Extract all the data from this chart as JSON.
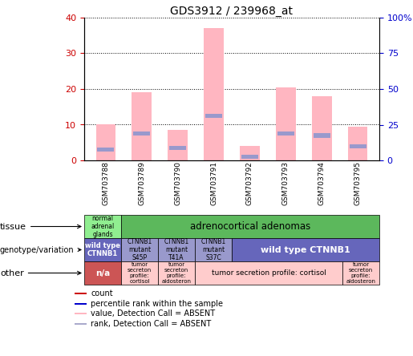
{
  "title": "GDS3912 / 239968_at",
  "samples": [
    "GSM703788",
    "GSM703789",
    "GSM703790",
    "GSM703791",
    "GSM703792",
    "GSM703793",
    "GSM703794",
    "GSM703795"
  ],
  "pink_bars": [
    10,
    19,
    8.5,
    37,
    4,
    20.5,
    18,
    9.5
  ],
  "blue_marks": [
    3,
    7.5,
    3.5,
    12.5,
    1,
    7.5,
    7,
    4
  ],
  "ylim_left": [
    0,
    40
  ],
  "ylim_right": [
    0,
    100
  ],
  "yticks_left": [
    0,
    10,
    20,
    30,
    40
  ],
  "yticks_right": [
    0,
    25,
    50,
    75,
    100
  ],
  "ytick_labels_right": [
    "0",
    "25",
    "50",
    "75",
    "100%"
  ],
  "bar_color_pink": "#FFB6C1",
  "bar_color_blue": "#9999CC",
  "left_axis_color": "#CC0000",
  "right_axis_color": "#0000CC",
  "tissue_col0_text": "normal\nadrenal\nglands",
  "tissue_col0_color": "#90EE90",
  "tissue_col1_7_text": "adrenocortical adenomas",
  "tissue_col1_7_color": "#5CB85C",
  "geno_col0_text": "wild type\nCTNNB1",
  "geno_col0_color": "#6666BB",
  "geno_col1_text": "CTNNB1\nmutant\nS45P",
  "geno_col2_text": "CTNNB1\nmutant\nT41A",
  "geno_col3_text": "CTNNB1\nmutant\nS37C",
  "geno_col1_3_color": "#9999CC",
  "geno_col4_7_text": "wild type CTNNB1",
  "geno_col4_7_color": "#6666BB",
  "other_col0_text": "n/a",
  "other_col0_color": "#CC5555",
  "other_col1_text": "tumor\nsecreton\nprofile:\ncortisol",
  "other_col2_text": "tumor\nsecreton\nprofile:\naldosteron",
  "other_col3_6_text": "tumor secretion profile: cortisol",
  "other_col7_text": "tumor\nsecreton\nprofile:\naldosteron",
  "other_light_color": "#FFCCCC",
  "legend_colors": [
    "#CC0000",
    "#0000CC",
    "#FFB6C1",
    "#AAAACC"
  ],
  "legend_labels": [
    "count",
    "percentile rank within the sample",
    "value, Detection Call = ABSENT",
    "rank, Detection Call = ABSENT"
  ],
  "background_color": "#FFFFFF"
}
